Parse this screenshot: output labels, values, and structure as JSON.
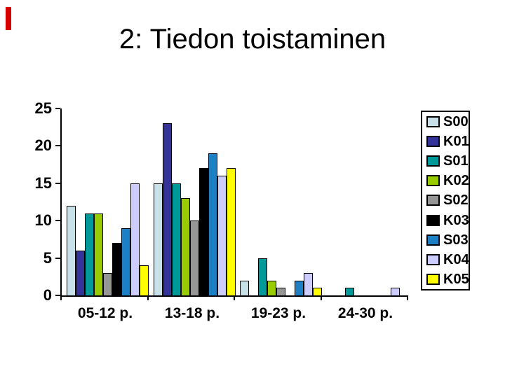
{
  "slide": {
    "title": "2: Tiedon toistaminen",
    "accent_color": "#d40000"
  },
  "chart_data": {
    "type": "bar",
    "title": "",
    "xlabel": "",
    "ylabel": "",
    "categories": [
      "05-12 p.",
      "13-18 p.",
      "19-23 p.",
      "24-30 p."
    ],
    "series": [
      {
        "name": "S00",
        "color": "#c8e0e8",
        "values": [
          12,
          15,
          2,
          0
        ]
      },
      {
        "name": "K01",
        "color": "#333399",
        "values": [
          6,
          23,
          0,
          0
        ]
      },
      {
        "name": "S01",
        "color": "#009999",
        "values": [
          11,
          15,
          5,
          1
        ]
      },
      {
        "name": "K02",
        "color": "#99cc00",
        "values": [
          11,
          13,
          2,
          0
        ]
      },
      {
        "name": "S02",
        "color": "#969696",
        "values": [
          3,
          10,
          1,
          0
        ]
      },
      {
        "name": "K03",
        "color": "#000000",
        "values": [
          7,
          17,
          0,
          0
        ]
      },
      {
        "name": "S03",
        "color": "#1e80c4",
        "values": [
          9,
          19,
          2,
          0
        ]
      },
      {
        "name": "K04",
        "color": "#ccccff",
        "values": [
          15,
          16,
          3,
          1
        ]
      },
      {
        "name": "K05",
        "color": "#ffff00",
        "values": [
          4,
          17,
          1,
          0
        ]
      }
    ],
    "y_ticks": [
      0,
      5,
      10,
      15,
      20,
      25
    ],
    "ylim": [
      0,
      25
    ],
    "grid": false,
    "legend_position": "right",
    "bar_outline_color": "#000000"
  }
}
